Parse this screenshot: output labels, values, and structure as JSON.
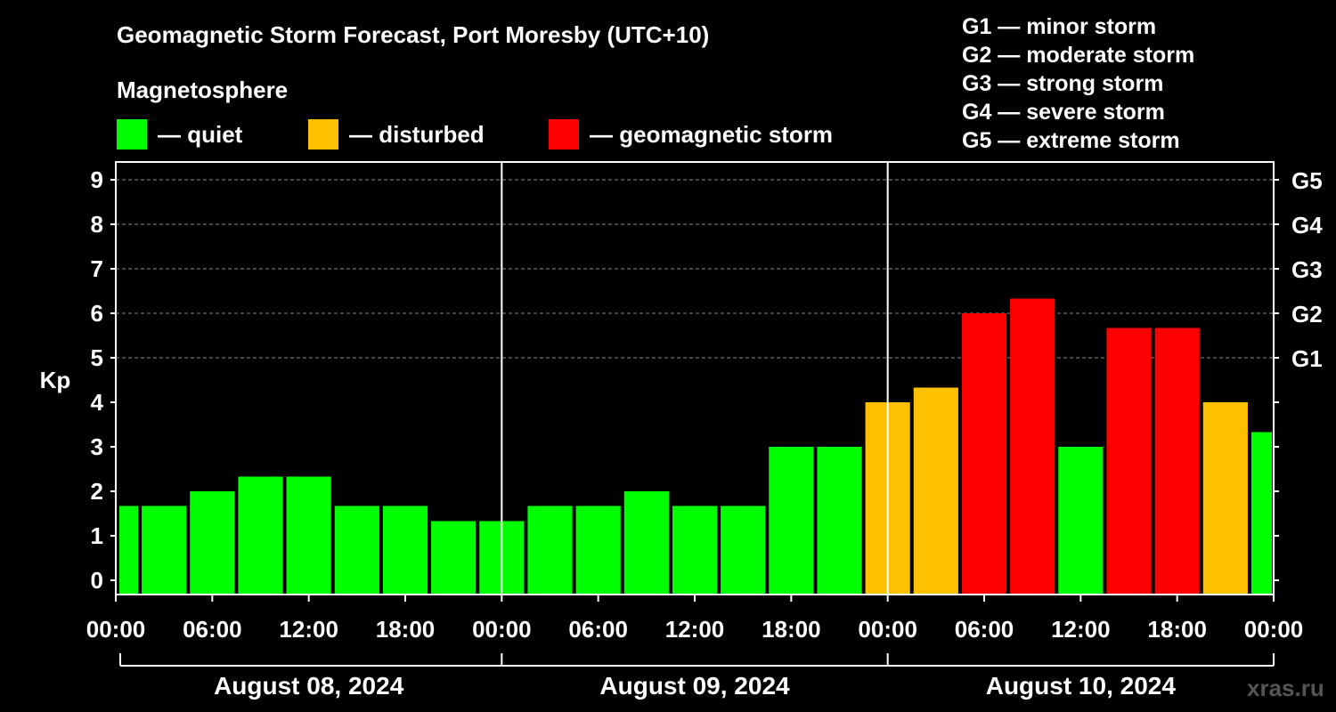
{
  "header": {
    "title": "Geomagnetic Storm Forecast, Port Moresby (UTC+10)",
    "subtitle": "Magnetosphere"
  },
  "legend": [
    {
      "label": "— quiet",
      "color": "#00ff00"
    },
    {
      "label": "— disturbed",
      "color": "#ffc000"
    },
    {
      "label": "— geomagnetic storm",
      "color": "#ff0000"
    }
  ],
  "g_scale": [
    "G1 — minor storm",
    "G2 — moderate storm",
    "G3 — strong storm",
    "G4 — severe storm",
    "G5 — extreme storm"
  ],
  "watermark": "xras.ru",
  "chart_data": {
    "type": "bar",
    "ylabel": "Kp",
    "ylim": [
      0,
      9
    ],
    "yticks": [
      "0",
      "1",
      "2",
      "3",
      "4",
      "5",
      "6",
      "7",
      "8",
      "9"
    ],
    "right_ticks": [
      {
        "label": "G1",
        "value": 5
      },
      {
        "label": "G2",
        "value": 6
      },
      {
        "label": "G3",
        "value": 7
      },
      {
        "label": "G4",
        "value": 8
      },
      {
        "label": "G5",
        "value": 9
      }
    ],
    "grid": "horizontal dashed at Kp 5-9",
    "xticks": [
      "00:00",
      "06:00",
      "12:00",
      "18:00",
      "00:00",
      "06:00",
      "12:00",
      "18:00",
      "00:00",
      "06:00",
      "12:00",
      "18:00",
      "00:00"
    ],
    "days": [
      "August 08, 2024",
      "August 09, 2024",
      "August 10, 2024"
    ],
    "interval_hours": 3,
    "values": [
      1.67,
      1.67,
      2.0,
      2.33,
      2.33,
      1.67,
      1.67,
      1.33,
      1.33,
      1.67,
      1.67,
      2.0,
      1.67,
      1.67,
      3.0,
      3.0,
      4.0,
      4.33,
      6.0,
      6.33,
      3.0,
      5.67,
      5.67,
      4.0,
      3.33
    ],
    "categories": [
      "quiet",
      "quiet",
      "quiet",
      "quiet",
      "quiet",
      "quiet",
      "quiet",
      "quiet",
      "quiet",
      "quiet",
      "quiet",
      "quiet",
      "quiet",
      "quiet",
      "quiet",
      "quiet",
      "disturbed",
      "disturbed",
      "geomagnetic storm",
      "geomagnetic storm",
      "quiet",
      "geomagnetic storm",
      "geomagnetic storm",
      "disturbed",
      "quiet"
    ]
  }
}
